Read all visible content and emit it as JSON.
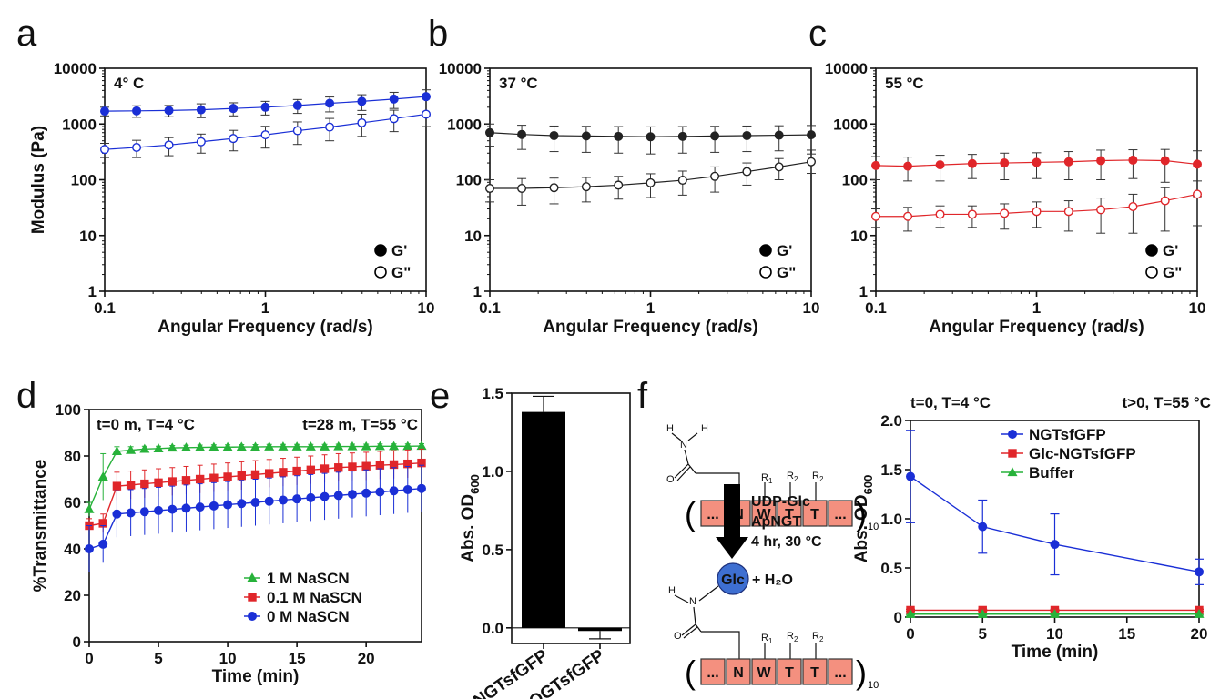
{
  "panel_labels": {
    "a": "a",
    "b": "b",
    "c": "c",
    "d": "d",
    "e": "e",
    "f": "f"
  },
  "chart_data": [
    {
      "id": "a",
      "type": "scatter",
      "scale": "log-log",
      "annotation": "4° C",
      "color": "#1a2fd6",
      "xlabel": "Angular Frequency (rad/s)",
      "ylabel": "Modulus (Pa)",
      "xlim": [
        0.1,
        10
      ],
      "ylim": [
        1,
        10000
      ],
      "xticks": [
        {
          "v": 0.1,
          "l": "0.1"
        },
        {
          "v": 1,
          "l": "1"
        },
        {
          "v": 10,
          "l": "10"
        }
      ],
      "yticks": [
        {
          "v": 1,
          "l": "1"
        },
        {
          "v": 10,
          "l": "10"
        },
        {
          "v": 100,
          "l": "100"
        },
        {
          "v": 1000,
          "l": "1000"
        },
        {
          "v": 10000,
          "l": "10000"
        }
      ],
      "legend": [
        "G'",
        "G\""
      ],
      "x": [
        0.1,
        0.158,
        0.251,
        0.398,
        0.631,
        1.0,
        1.585,
        2.512,
        3.981,
        6.31,
        10
      ],
      "series": [
        {
          "name": "G'",
          "filled": true,
          "values": [
            1700,
            1720,
            1750,
            1800,
            1900,
            2000,
            2150,
            2350,
            2550,
            2800,
            3100
          ],
          "err": [
            300,
            400,
            400,
            500,
            500,
            550,
            600,
            700,
            800,
            900,
            1000
          ]
        },
        {
          "name": "G\"",
          "filled": false,
          "values": [
            350,
            380,
            420,
            480,
            550,
            640,
            760,
            880,
            1050,
            1250,
            1500
          ],
          "err": [
            100,
            130,
            150,
            180,
            220,
            270,
            330,
            380,
            450,
            520,
            600
          ]
        }
      ]
    },
    {
      "id": "b",
      "type": "scatter",
      "scale": "log-log",
      "annotation": "37 °C",
      "color": "#222222",
      "xlabel": "Angular Frequency (rad/s)",
      "ylabel": "",
      "xlim": [
        0.1,
        10
      ],
      "ylim": [
        1,
        10000
      ],
      "xticks": [
        {
          "v": 0.1,
          "l": "0.1"
        },
        {
          "v": 1,
          "l": "1"
        },
        {
          "v": 10,
          "l": "10"
        }
      ],
      "yticks": [
        {
          "v": 1,
          "l": "1"
        },
        {
          "v": 10,
          "l": "10"
        },
        {
          "v": 100,
          "l": "100"
        },
        {
          "v": 1000,
          "l": "1000"
        },
        {
          "v": 10000,
          "l": "10000"
        }
      ],
      "legend": [
        "G'",
        "G\""
      ],
      "x": [
        0.1,
        0.158,
        0.251,
        0.398,
        0.631,
        1.0,
        1.585,
        2.512,
        3.981,
        6.31,
        10
      ],
      "series": [
        {
          "name": "G'",
          "filled": true,
          "values": [
            700,
            650,
            620,
            610,
            600,
            590,
            600,
            610,
            620,
            630,
            640
          ],
          "err": [
            300,
            300,
            300,
            300,
            300,
            300,
            300,
            300,
            300,
            300,
            300
          ]
        },
        {
          "name": "G\"",
          "filled": false,
          "values": [
            70,
            70,
            72,
            75,
            80,
            88,
            98,
            115,
            140,
            170,
            210
          ],
          "err": [
            30,
            35,
            35,
            35,
            35,
            40,
            45,
            55,
            60,
            70,
            80
          ]
        }
      ]
    },
    {
      "id": "c",
      "type": "scatter",
      "scale": "log-log",
      "annotation": "55 °C",
      "color": "#e0262a",
      "xlabel": "Angular Frequency (rad/s)",
      "ylabel": "",
      "xlim": [
        0.1,
        10
      ],
      "ylim": [
        1,
        10000
      ],
      "xticks": [
        {
          "v": 0.1,
          "l": "0.1"
        },
        {
          "v": 1,
          "l": "1"
        },
        {
          "v": 10,
          "l": "10"
        }
      ],
      "yticks": [
        {
          "v": 1,
          "l": "1"
        },
        {
          "v": 10,
          "l": "10"
        },
        {
          "v": 100,
          "l": "100"
        },
        {
          "v": 1000,
          "l": "1000"
        },
        {
          "v": 10000,
          "l": "10000"
        }
      ],
      "legend": [
        "G'",
        "G\""
      ],
      "x": [
        0.1,
        0.158,
        0.251,
        0.398,
        0.631,
        1.0,
        1.585,
        2.512,
        3.981,
        6.31,
        10
      ],
      "series": [
        {
          "name": "G'",
          "filled": true,
          "values": [
            180,
            175,
            185,
            195,
            200,
            205,
            210,
            220,
            225,
            220,
            190
          ],
          "err": [
            80,
            80,
            90,
            90,
            100,
            100,
            110,
            120,
            120,
            130,
            140
          ]
        },
        {
          "name": "G\"",
          "filled": false,
          "values": [
            22,
            22,
            24,
            24,
            25,
            27,
            27,
            29,
            33,
            42,
            55
          ],
          "err": [
            8,
            10,
            10,
            10,
            12,
            13,
            15,
            18,
            22,
            30,
            40
          ]
        }
      ]
    },
    {
      "id": "d",
      "type": "line",
      "title_left": "t=0 m, T=4 °C",
      "title_right": "t=28 m, T=55 °C",
      "xlabel": "Time (min)",
      "ylabel": "%Transmittance",
      "xlim": [
        0,
        24
      ],
      "ylim": [
        0,
        100
      ],
      "xticks": [
        {
          "v": 0,
          "l": "0"
        },
        {
          "v": 5,
          "l": "5"
        },
        {
          "v": 10,
          "l": "10"
        },
        {
          "v": 15,
          "l": "15"
        },
        {
          "v": 20,
          "l": "20"
        }
      ],
      "yticks": [
        {
          "v": 0,
          "l": "0"
        },
        {
          "v": 20,
          "l": "20"
        },
        {
          "v": 40,
          "l": "40"
        },
        {
          "v": 60,
          "l": "60"
        },
        {
          "v": 80,
          "l": "80"
        },
        {
          "v": 100,
          "l": "100"
        }
      ],
      "x": [
        0,
        1,
        2,
        3,
        4,
        5,
        6,
        7,
        8,
        9,
        10,
        11,
        12,
        13,
        14,
        15,
        16,
        17,
        18,
        19,
        20,
        21,
        22,
        23,
        24
      ],
      "series": [
        {
          "name": "1 M NaSCN",
          "color": "#27b23a",
          "marker": "triangle",
          "values": [
            57,
            71,
            82,
            82.5,
            83,
            83.2,
            83.5,
            83.6,
            83.7,
            83.8,
            83.8,
            83.9,
            83.9,
            84,
            84,
            84,
            84,
            84,
            84.1,
            84.1,
            84.1,
            84.2,
            84.2,
            84.2,
            84.3
          ],
          "err": [
            3,
            10,
            2,
            1.5,
            1.2,
            1,
            1,
            1,
            1,
            1,
            1,
            1,
            1,
            1,
            1,
            1,
            1,
            1,
            1,
            1,
            1,
            1,
            1,
            1,
            1
          ]
        },
        {
          "name": "0.1 M NaSCN",
          "color": "#e0262a",
          "marker": "square",
          "values": [
            50,
            51,
            67,
            67.5,
            68,
            68.5,
            69,
            69.5,
            70,
            70.5,
            71,
            71.5,
            72,
            72.5,
            73,
            73.5,
            74,
            74.5,
            75,
            75.3,
            75.6,
            76,
            76.3,
            76.6,
            77
          ],
          "err": [
            3,
            4,
            6,
            6,
            6,
            6,
            6,
            6,
            6,
            6,
            6,
            6,
            6,
            6,
            6,
            6,
            6,
            6,
            6,
            6,
            6,
            6,
            6,
            6,
            6
          ]
        },
        {
          "name": "0 M NaSCN",
          "color": "#1a2fd6",
          "marker": "circle",
          "values": [
            40,
            42,
            55,
            55.5,
            56,
            56.5,
            57,
            57.5,
            58,
            58.5,
            59,
            59.5,
            60,
            60.5,
            61,
            61.5,
            62,
            62.5,
            63,
            63.5,
            64,
            64.5,
            65,
            65.5,
            66
          ],
          "err": [
            10,
            8,
            10,
            10,
            10,
            10,
            10,
            10,
            10,
            10,
            10,
            10,
            10,
            10,
            10,
            10,
            10,
            10,
            10,
            10,
            10,
            10,
            10,
            10,
            10
          ]
        }
      ]
    },
    {
      "id": "e",
      "type": "bar",
      "ylabel_main": "Abs. OD",
      "ylabel_sub": "600",
      "categories": [
        "NGTsfGFP",
        "QGTsfGFP"
      ],
      "values": [
        1.38,
        -0.02
      ],
      "err": [
        0.1,
        0.05
      ],
      "color": "#000000",
      "ylim": [
        -0.1,
        1.5
      ],
      "yticks": [
        {
          "v": 0,
          "l": "0.0"
        },
        {
          "v": 0.5,
          "l": "0.5"
        },
        {
          "v": 1,
          "l": "1.0"
        },
        {
          "v": 1.5,
          "l": "1.5"
        }
      ]
    },
    {
      "id": "f",
      "type": "line",
      "title_left": "t=0, T=4 °C",
      "title_right": "t>0, T=55 °C",
      "xlabel": "Time (min)",
      "ylabel_main": "Abs. OD",
      "ylabel_sub": "600",
      "xlim": [
        0,
        20
      ],
      "ylim": [
        0,
        2.0
      ],
      "xticks": [
        {
          "v": 0,
          "l": "0"
        },
        {
          "v": 5,
          "l": "5"
        },
        {
          "v": 10,
          "l": "10"
        },
        {
          "v": 15,
          "l": "15"
        },
        {
          "v": 20,
          "l": "20"
        }
      ],
      "yticks": [
        {
          "v": 0,
          "l": "0"
        },
        {
          "v": 0.5,
          "l": "0.5"
        },
        {
          "v": 1.0,
          "l": "1.0"
        },
        {
          "v": 1.5,
          "l": "1.5"
        },
        {
          "v": 2.0,
          "l": "2.0"
        }
      ],
      "x": [
        0,
        5,
        10,
        20
      ],
      "series": [
        {
          "name": "NGTsfGFP",
          "color": "#1a2fd6",
          "marker": "circle",
          "values": [
            1.43,
            0.92,
            0.74,
            0.46
          ],
          "err": [
            0.47,
            0.27,
            0.31,
            0.13
          ]
        },
        {
          "name": "Glc-NGTsfGFP",
          "color": "#e0262a",
          "marker": "square",
          "values": [
            0.07,
            0.07,
            0.07,
            0.07
          ],
          "err": [
            0.01,
            0.01,
            0.01,
            0.01
          ]
        },
        {
          "name": "Buffer",
          "color": "#27b23a",
          "marker": "triangle",
          "values": [
            0.03,
            0.03,
            0.03,
            0.03
          ],
          "err": [
            0.01,
            0.01,
            0.01,
            0.01
          ]
        }
      ]
    }
  ],
  "scheme": {
    "h": "H",
    "n": "N",
    "o": "O",
    "residues": [
      "...",
      "N",
      "W",
      "T",
      "T",
      "..."
    ],
    "repeat": "10",
    "r1": "R",
    "r1_sub": "1",
    "r2": "R",
    "r2_sub": "2",
    "reagents": [
      "UDP-Glc",
      "ApNGT",
      "4 hr, 30 °C"
    ],
    "glc": "Glc",
    "plus_water": "+ H₂O",
    "residue_color": "#f4907f"
  }
}
